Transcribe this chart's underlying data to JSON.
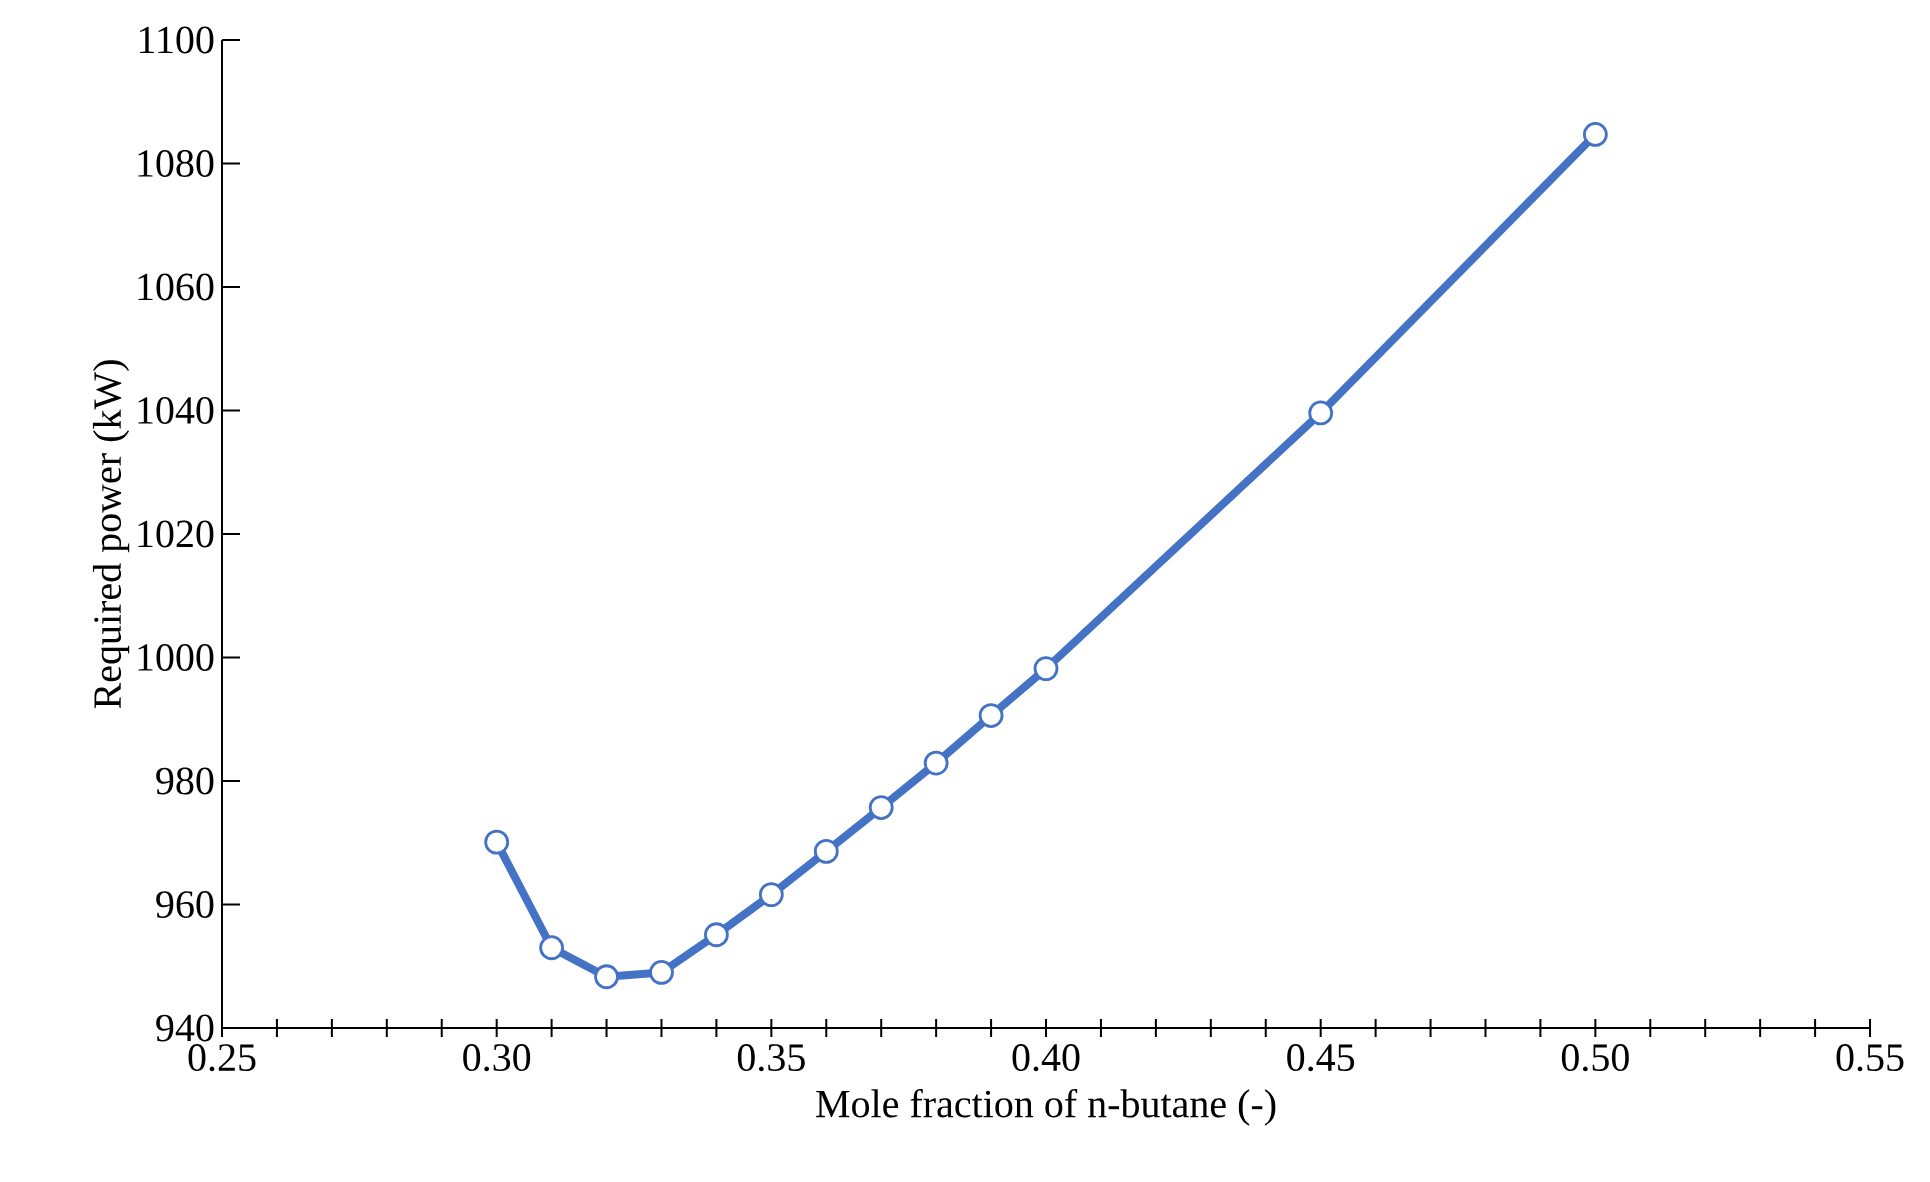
{
  "chart_data": {
    "type": "line",
    "xlabel": "Mole fraction of n-butane (-)",
    "ylabel": "Required power (kW)",
    "x": [
      0.3,
      0.31,
      0.32,
      0.33,
      0.34,
      0.35,
      0.36,
      0.37,
      0.38,
      0.39,
      0.4,
      0.45,
      0.5
    ],
    "series": [
      {
        "color": "#4472c4",
        "values": [
          970.1,
          953,
          948.3,
          949,
          955.1,
          961.6,
          968.6,
          975.7,
          982.9,
          990.6,
          998.2,
          1039.6,
          1084.7
        ]
      }
    ],
    "marker": "circle",
    "line_style": "solid",
    "grid": false,
    "xlim": [
      0.25,
      0.55
    ],
    "ylim": [
      940,
      1100
    ],
    "xticks": [
      {
        "value": 0.25,
        "label": "0.25"
      },
      {
        "value": 0.3,
        "label": "0.30"
      },
      {
        "value": 0.35,
        "label": "0.35"
      },
      {
        "value": 0.4,
        "label": "0.40"
      },
      {
        "value": 0.45,
        "label": "0.45"
      },
      {
        "value": 0.5,
        "label": "0.50"
      },
      {
        "value": 0.55,
        "label": "0.55"
      }
    ],
    "yticks": [
      940,
      960,
      980,
      1000,
      1020,
      1040,
      1060,
      1080,
      1100
    ]
  }
}
